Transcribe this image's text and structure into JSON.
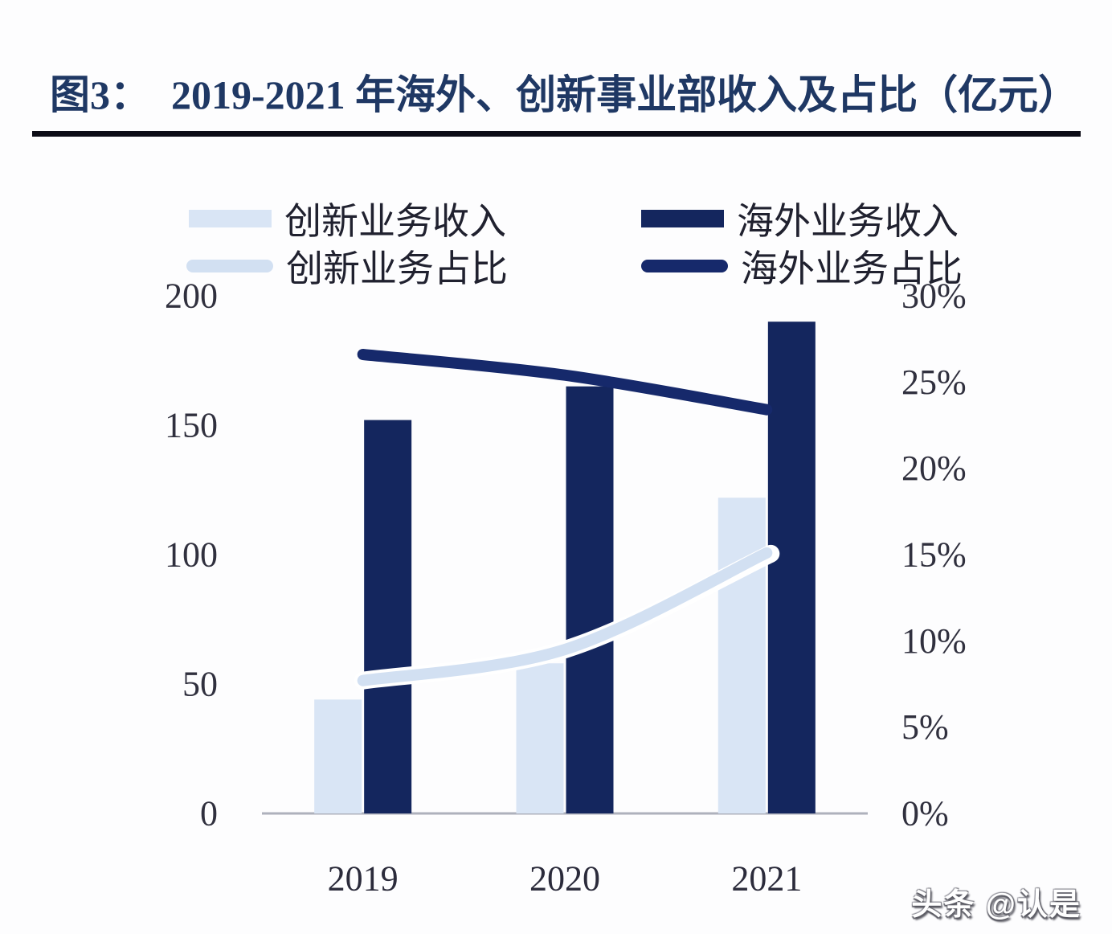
{
  "figure": {
    "title_prefix": "图3：",
    "title": "2019-2021 年海外、创新事业部收入及占比（亿元）",
    "watermark": "头条 @认是"
  },
  "legend": {
    "items": [
      {
        "label": "创新业务收入",
        "type": "bar",
        "color": "#D9E5F5"
      },
      {
        "label": "海外业务收入",
        "type": "bar",
        "color": "#14265E"
      },
      {
        "label": "创新业务占比",
        "type": "line",
        "color": "#D2E0F2"
      },
      {
        "label": "海外业务占比",
        "type": "line",
        "color": "#16296B"
      }
    ]
  },
  "chart_data": {
    "type": "combo-bar-line",
    "title": "2019-2021 年海外、创新事业部收入及占比（亿元）",
    "categories": [
      "2019",
      "2020",
      "2021"
    ],
    "series": [
      {
        "name": "创新业务收入",
        "chart": "bar",
        "axis": "left",
        "unit": "亿元",
        "color": "#D9E5F5",
        "values": [
          44,
          58,
          122
        ]
      },
      {
        "name": "海外业务收入",
        "chart": "bar",
        "axis": "left",
        "unit": "亿元",
        "color": "#14265E",
        "values": [
          152,
          165,
          190
        ]
      },
      {
        "name": "创新业务占比",
        "chart": "line",
        "axis": "right",
        "unit": "%",
        "color": "#D2E0F2",
        "values": [
          7.7,
          9.5,
          15.1
        ]
      },
      {
        "name": "海外业务占比",
        "chart": "line",
        "axis": "right",
        "unit": "%",
        "color": "#16296B",
        "values": [
          26.6,
          25.4,
          23.4
        ]
      }
    ],
    "left_axis": {
      "min": 0,
      "max": 200,
      "ticks": [
        "0",
        "50",
        "100",
        "150",
        "200"
      ],
      "tick_values": [
        0,
        50,
        100,
        150,
        200
      ]
    },
    "right_axis": {
      "min": 0,
      "max": 30,
      "ticks": [
        "0%",
        "5%",
        "10%",
        "15%",
        "20%",
        "25%",
        "30%"
      ],
      "tick_values": [
        0,
        5,
        10,
        15,
        20,
        25,
        30
      ]
    },
    "grid": false,
    "legend_position": "top"
  }
}
